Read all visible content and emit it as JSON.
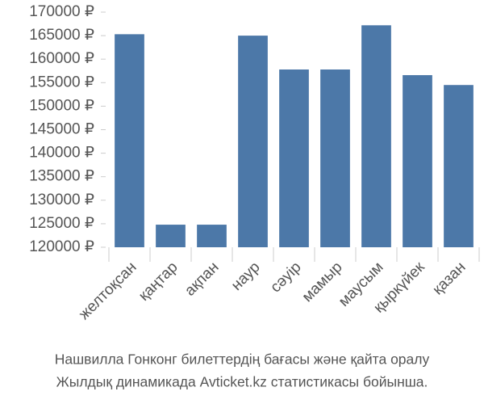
{
  "chart_data": {
    "type": "bar",
    "categories": [
      "желтоқсан",
      "қаңтар",
      "ақпан",
      "наур",
      "сәуір",
      "мамыр",
      "маусым",
      "қыркүйек",
      "қазан"
    ],
    "values": [
      165300,
      124800,
      124800,
      165000,
      157800,
      157800,
      167200,
      156600,
      154500
    ],
    "color": "#4c78a8",
    "ylim": [
      120000,
      170000
    ],
    "yticks": [
      {
        "value": 120000,
        "label": "120000 ₽"
      },
      {
        "value": 125000,
        "label": "125000 ₽"
      },
      {
        "value": 130000,
        "label": "130000 ₽"
      },
      {
        "value": 135000,
        "label": "135000 ₽"
      },
      {
        "value": 140000,
        "label": "140000 ₽"
      },
      {
        "value": 145000,
        "label": "145000 ₽"
      },
      {
        "value": 150000,
        "label": "150000 ₽"
      },
      {
        "value": 155000,
        "label": "155000 ₽"
      },
      {
        "value": 160000,
        "label": "160000 ₽"
      },
      {
        "value": 165000,
        "label": "165000 ₽"
      },
      {
        "value": 170000,
        "label": "170000 ₽"
      }
    ],
    "caption": [
      "Нашвилла Гонконг билеттердің бағасы және қайта оралу",
      "Жылдық динамикада Avticket.kz статистикасы бойынша."
    ]
  }
}
